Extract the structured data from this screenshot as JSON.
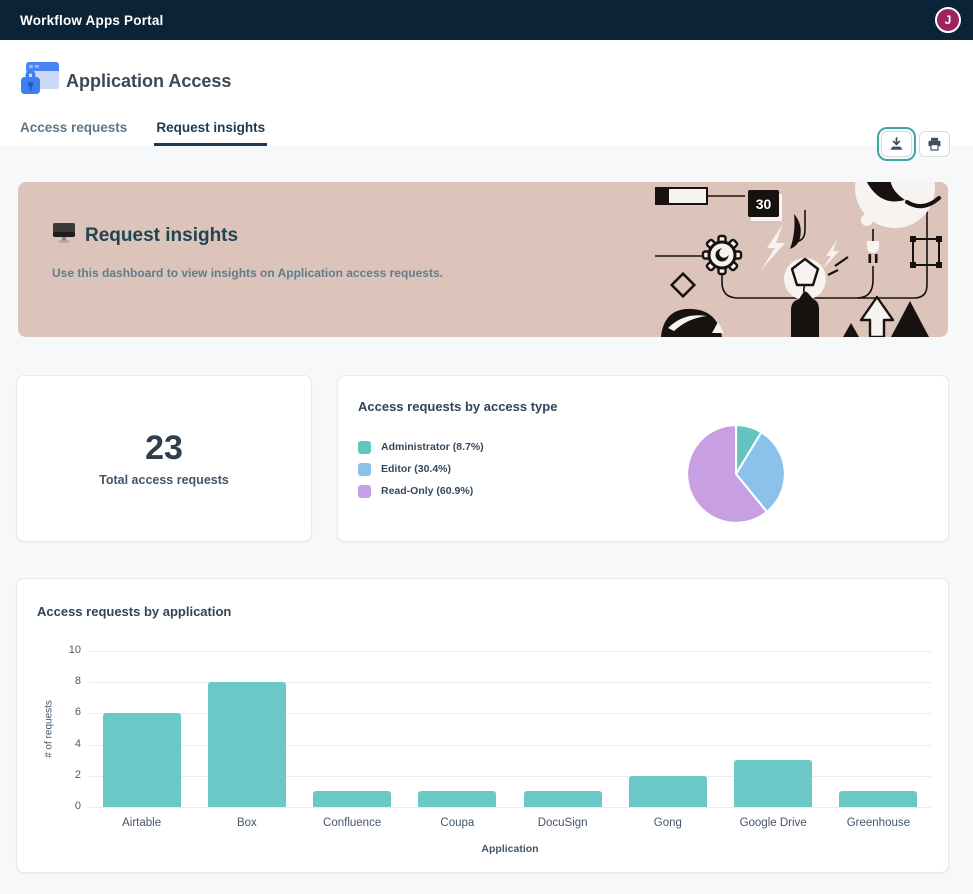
{
  "topbar": {
    "title": "Workflow Apps Portal",
    "avatar_initial": "J",
    "colors": {
      "bar_bg": "#0b2336",
      "avatar_bg": "#9e2360"
    }
  },
  "header": {
    "app_icon": "app-window-lock-icon",
    "title": "Application Access",
    "tabs": [
      {
        "label": "Access requests",
        "active": false
      },
      {
        "label": "Request insights",
        "active": true
      }
    ],
    "actions": [
      {
        "name": "download",
        "icon": "download-icon",
        "focused": true
      },
      {
        "name": "print",
        "icon": "printer-icon",
        "focused": false
      }
    ]
  },
  "banner": {
    "icon": "monitor-icon",
    "title": "Request insights",
    "subtitle": "Use this dashboard to view insights on Application access requests.",
    "bg_color": "#ddc4ba"
  },
  "stat_card": {
    "value": "23",
    "label": "Total access requests"
  },
  "chart_data": [
    {
      "type": "pie",
      "title": "Access requests by access type",
      "legend_position": "left",
      "slices": [
        {
          "label": "Administrator",
          "pct": 8.7,
          "display": "Administrator (8.7%)",
          "color": "#63c5c0"
        },
        {
          "label": "Editor",
          "pct": 30.4,
          "display": "Editor (30.4%)",
          "color": "#8ac2ec"
        },
        {
          "label": "Read-Only",
          "pct": 60.9,
          "display": "Read-Only (60.9%)",
          "color": "#c99fe3"
        }
      ]
    },
    {
      "type": "bar",
      "title": "Access requests by application",
      "categories": [
        "Airtable",
        "Box",
        "Confluence",
        "Coupa",
        "DocuSign",
        "Gong",
        "Google Drive",
        "Greenhouse"
      ],
      "values": [
        6,
        8,
        1,
        1,
        1,
        2,
        3,
        1
      ],
      "xlabel": "Application",
      "ylabel": "# of requests",
      "ylim": [
        0,
        10
      ],
      "yticks": [
        0,
        2,
        4,
        6,
        8,
        10
      ],
      "grid": true,
      "bar_color": "#6cc7c7"
    }
  ]
}
